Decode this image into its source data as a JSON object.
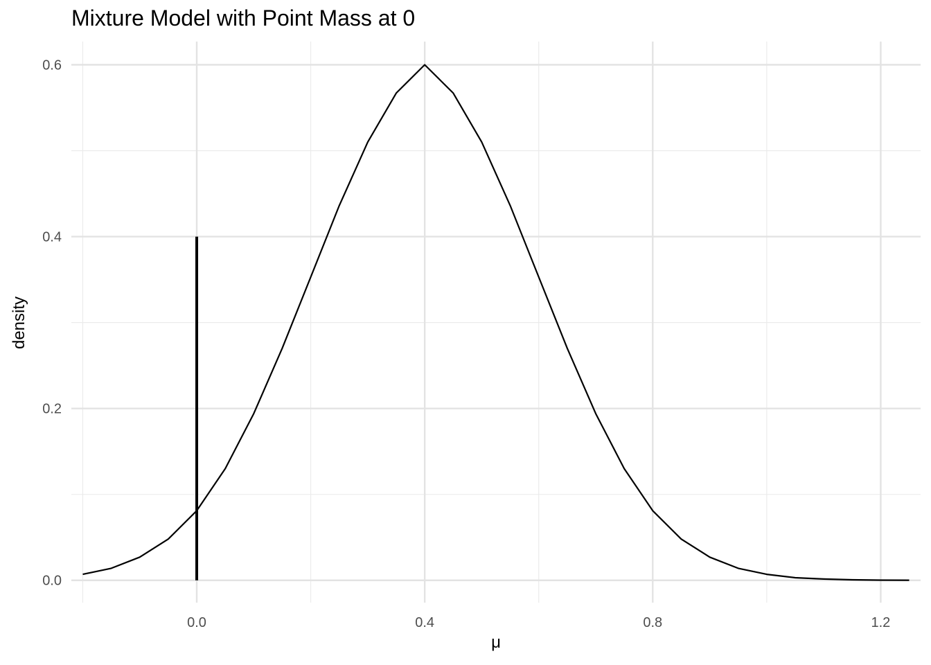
{
  "chart_data": {
    "type": "line",
    "title": "Mixture Model with Point Mass at 0",
    "xlabel": "μ",
    "ylabel": "density",
    "xlim": [
      -0.22,
      1.27
    ],
    "ylim": [
      -0.026,
      0.627
    ],
    "grid": true,
    "x_major_ticks": [
      0.0,
      0.4,
      0.8,
      1.2
    ],
    "x_tick_labels": [
      "0.0",
      "0.4",
      "0.8",
      "1.2"
    ],
    "x_minor_ticks": [
      -0.2,
      0.2,
      0.6,
      1.0
    ],
    "y_major_ticks": [
      0.0,
      0.2,
      0.4,
      0.6
    ],
    "y_tick_labels": [
      "0.0",
      "0.2",
      "0.4",
      "0.6"
    ],
    "y_minor_ticks": [
      0.1,
      0.3,
      0.5
    ],
    "series": [
      {
        "type": "line",
        "color": "#000000",
        "x": [
          -0.2,
          -0.15,
          -0.1,
          -0.05,
          0.0,
          0.05,
          0.1,
          0.15,
          0.2,
          0.25,
          0.3,
          0.35,
          0.4,
          0.45,
          0.5,
          0.55,
          0.6,
          0.65,
          0.7,
          0.75,
          0.8,
          0.85,
          0.9,
          0.95,
          1.0,
          1.05,
          1.1,
          1.15,
          1.2,
          1.25
        ],
        "y": [
          0.007,
          0.014,
          0.027,
          0.048,
          0.081,
          0.13,
          0.194,
          0.27,
          0.353,
          0.436,
          0.51,
          0.567,
          0.6,
          0.567,
          0.51,
          0.436,
          0.353,
          0.27,
          0.194,
          0.13,
          0.081,
          0.048,
          0.027,
          0.014,
          0.007,
          0.003,
          0.0015,
          0.0006,
          0.0002,
          0.0001
        ]
      },
      {
        "type": "segment",
        "name": "point mass",
        "color": "#000000",
        "x": 0.0,
        "y_from": 0.0,
        "y_to": 0.4
      }
    ]
  }
}
